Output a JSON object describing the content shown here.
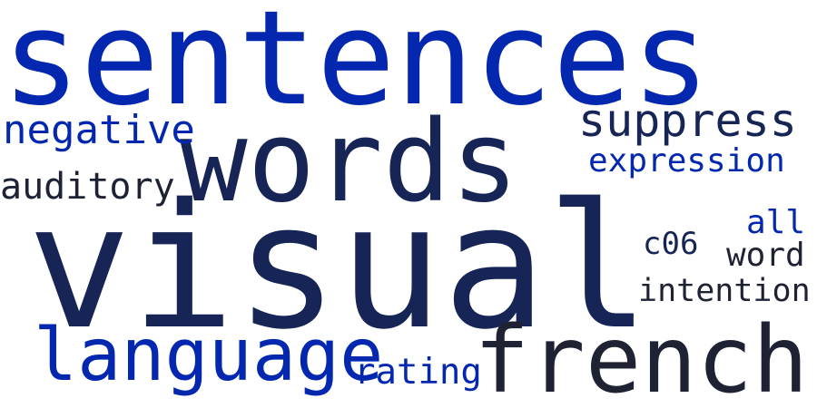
{
  "words": {
    "sentences": {
      "text": "sentences",
      "color": "#0427b0"
    },
    "words": {
      "text": "words",
      "color": "#172556"
    },
    "visual": {
      "text": "visual",
      "color": "#172556"
    },
    "language": {
      "text": "language",
      "color": "#0427b0"
    },
    "french": {
      "text": "french",
      "color": "#1e2233"
    },
    "suppress": {
      "text": "suppress",
      "color": "#172556"
    },
    "negative": {
      "text": "negative",
      "color": "#0427b0"
    },
    "auditory": {
      "text": "auditory",
      "color": "#1e2233"
    },
    "expression": {
      "text": "expression",
      "color": "#0427b0"
    },
    "all": {
      "text": "all",
      "color": "#0427b0"
    },
    "c06": {
      "text": "c06",
      "color": "#172556"
    },
    "word": {
      "text": "word",
      "color": "#1e2233"
    },
    "intention": {
      "text": "intention",
      "color": "#1e2233"
    },
    "rating": {
      "text": "rating",
      "color": "#0427b0"
    }
  }
}
